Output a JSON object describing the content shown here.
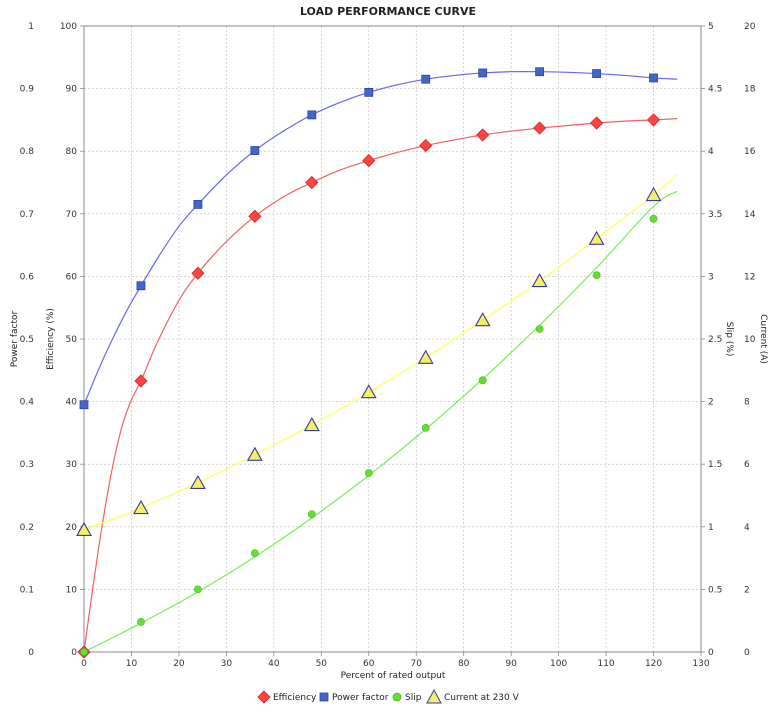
{
  "chart_data": {
    "type": "scatter",
    "title": "LOAD PERFORMANCE CURVE",
    "xlabel": "Percent of rated output",
    "xlim": [
      0,
      130
    ],
    "xticks": [
      "0",
      "10",
      "20",
      "30",
      "40",
      "50",
      "60",
      "70",
      "80",
      "90",
      "100",
      "110",
      "120",
      "130"
    ],
    "axes": {
      "power_factor": {
        "label": "Power factor",
        "lim": [
          0,
          1
        ],
        "ticks": [
          "0",
          "0.1",
          "0.2",
          "0.3",
          "0.4",
          "0.5",
          "0.6",
          "0.7",
          "0.8",
          "0.9",
          "1"
        ]
      },
      "efficiency": {
        "label": "Efficiency (%)",
        "lim": [
          0,
          100
        ],
        "ticks": [
          "0",
          "10",
          "20",
          "30",
          "40",
          "50",
          "60",
          "70",
          "80",
          "90",
          "100"
        ]
      },
      "slip": {
        "label": "Slip (%)",
        "lim": [
          0,
          5
        ],
        "ticks": [
          "0",
          "0.5",
          "1",
          "1.5",
          "2",
          "2.5",
          "3",
          "3.5",
          "4",
          "4.5",
          "5"
        ]
      },
      "current": {
        "label": "Current (A)",
        "lim": [
          0,
          20
        ],
        "ticks": [
          "0",
          "2",
          "4",
          "6",
          "8",
          "10",
          "12",
          "14",
          "16",
          "18",
          "20"
        ]
      }
    },
    "grid": true,
    "legend_position": "bottom",
    "series": [
      {
        "name": "Efficiency",
        "axis": "efficiency",
        "marker": "diamond",
        "color": "#ff4444",
        "stroke": "#cc2222",
        "line_color": "#f06060",
        "x": [
          0,
          12,
          24,
          36,
          48,
          60,
          72,
          84,
          96,
          108,
          120
        ],
        "y": [
          0,
          43.3,
          60.5,
          69.6,
          75,
          78.5,
          80.9,
          82.6,
          83.7,
          84.5,
          85
        ],
        "curve_x": [
          0,
          2,
          4,
          6,
          8,
          10,
          12,
          15,
          18,
          21,
          24,
          28,
          32,
          36,
          42,
          48,
          54,
          60,
          66,
          72,
          78,
          84,
          90,
          96,
          102,
          108,
          114,
          120,
          125
        ],
        "curve_y": [
          0,
          11,
          21,
          29.5,
          36,
          40.3,
          43.3,
          48.7,
          53.4,
          57.4,
          60.5,
          64,
          67,
          69.6,
          72.7,
          75,
          77,
          78.5,
          79.8,
          80.9,
          81.8,
          82.6,
          83.2,
          83.7,
          84.1,
          84.5,
          84.8,
          85,
          85.2
        ]
      },
      {
        "name": "Power factor",
        "axis": "power_factor",
        "marker": "square",
        "color": "#4466cc",
        "stroke": "#2a44a0",
        "line_color": "#6666ee",
        "x": [
          0,
          12,
          24,
          36,
          48,
          60,
          72,
          84,
          96,
          108,
          120
        ],
        "y": [
          0.395,
          0.585,
          0.715,
          0.801,
          0.858,
          0.894,
          0.915,
          0.925,
          0.927,
          0.924,
          0.917
        ],
        "curve_x": [
          0,
          3,
          6,
          9,
          12,
          16,
          20,
          24,
          30,
          36,
          42,
          48,
          54,
          60,
          66,
          72,
          78,
          84,
          90,
          96,
          102,
          108,
          114,
          120,
          125
        ],
        "curve_y": [
          0.395,
          0.45,
          0.5,
          0.545,
          0.585,
          0.635,
          0.68,
          0.715,
          0.762,
          0.801,
          0.832,
          0.858,
          0.878,
          0.894,
          0.906,
          0.915,
          0.921,
          0.925,
          0.927,
          0.927,
          0.926,
          0.924,
          0.921,
          0.917,
          0.915
        ]
      },
      {
        "name": "Slip",
        "axis": "slip",
        "marker": "circle",
        "color": "#66dd33",
        "stroke": "#44bb22",
        "line_color": "#77ee55",
        "x": [
          0,
          12,
          24,
          36,
          48,
          60,
          72,
          84,
          96,
          108,
          120
        ],
        "y": [
          0,
          0.24,
          0.5,
          0.79,
          1.1,
          1.43,
          1.79,
          2.17,
          2.58,
          3.01,
          3.46
        ],
        "curve_x": [
          0,
          12,
          24,
          36,
          48,
          60,
          72,
          84,
          96,
          108,
          120,
          125
        ],
        "curve_y": [
          0,
          0.23,
          0.48,
          0.76,
          1.07,
          1.41,
          1.78,
          2.18,
          2.61,
          3.07,
          3.56,
          3.68
        ]
      },
      {
        "name": "Current at 230 V",
        "axis": "current",
        "marker": "triangle",
        "color": "#f4f066",
        "stroke": "#3a3aa0",
        "line_color": "#ffff55",
        "x": [
          0,
          12,
          24,
          36,
          48,
          60,
          72,
          84,
          96,
          108,
          120
        ],
        "y": [
          3.9,
          4.6,
          5.4,
          6.3,
          7.25,
          8.3,
          9.4,
          10.6,
          11.85,
          13.2,
          14.6
        ],
        "curve_x": [
          0,
          12,
          24,
          36,
          48,
          60,
          72,
          84,
          96,
          108,
          120,
          125
        ],
        "curve_y": [
          3.9,
          4.6,
          5.4,
          6.3,
          7.25,
          8.3,
          9.4,
          10.6,
          11.85,
          13.2,
          14.6,
          15.25
        ]
      }
    ]
  }
}
